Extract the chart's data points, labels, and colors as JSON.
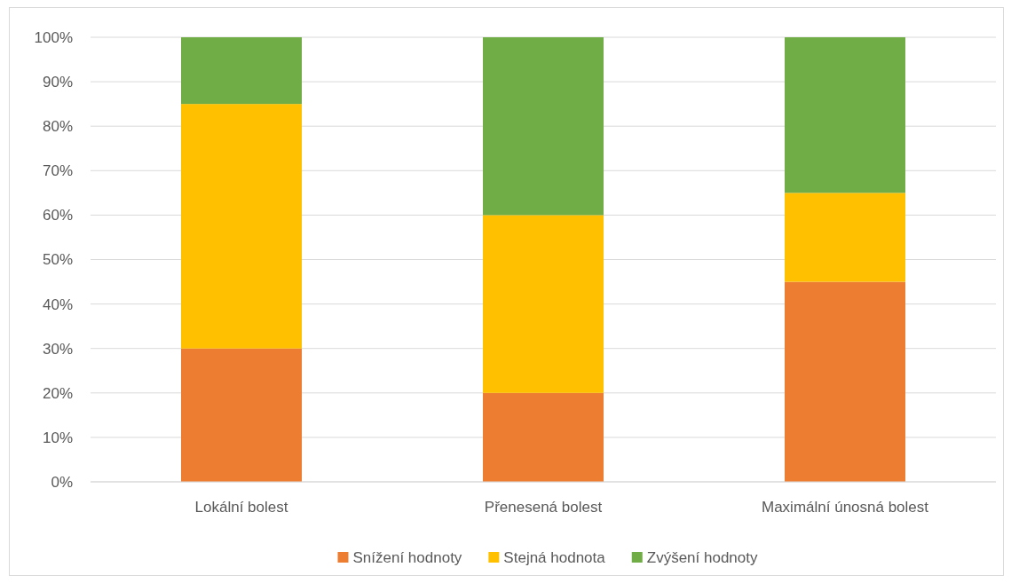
{
  "chart_data": {
    "type": "bar",
    "stacked": true,
    "categories": [
      "Lokální bolest",
      "Přenesená bolest",
      "Maximální únosná bolest"
    ],
    "series": [
      {
        "name": "Snížení hodnoty",
        "color": "#ed7d31",
        "values": [
          30,
          20,
          45
        ]
      },
      {
        "name": "Stejná hodnota",
        "color": "#ffc000",
        "values": [
          55,
          40,
          20
        ]
      },
      {
        "name": "Zvýšení hodnoty",
        "color": "#70ad47",
        "values": [
          15,
          40,
          35
        ]
      }
    ],
    "ylim": [
      0,
      100
    ],
    "yticks": [
      {
        "value": 0,
        "label": "0%"
      },
      {
        "value": 10,
        "label": "10%"
      },
      {
        "value": 20,
        "label": "20%"
      },
      {
        "value": 30,
        "label": "30%"
      },
      {
        "value": 40,
        "label": "40%"
      },
      {
        "value": 50,
        "label": "50%"
      },
      {
        "value": 60,
        "label": "60%"
      },
      {
        "value": 70,
        "label": "70%"
      },
      {
        "value": 80,
        "label": "80%"
      },
      {
        "value": 90,
        "label": "90%"
      },
      {
        "value": 100,
        "label": "100%"
      }
    ],
    "grid": "y",
    "legend": "bottom"
  }
}
